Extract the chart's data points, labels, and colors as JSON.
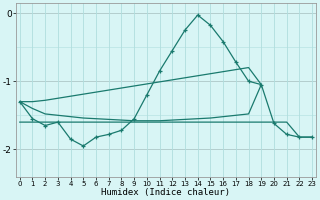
{
  "x": [
    0,
    1,
    2,
    3,
    4,
    5,
    6,
    7,
    8,
    9,
    10,
    11,
    12,
    13,
    14,
    15,
    16,
    17,
    18,
    19,
    20,
    21,
    22,
    23
  ],
  "line_main": [
    -1.3,
    -1.55,
    -1.65,
    -1.6,
    -1.85,
    -1.95,
    -1.82,
    -1.78,
    -1.72,
    -1.55,
    -1.2,
    -0.85,
    -0.55,
    -0.25,
    -0.03,
    -0.18,
    -0.42,
    -0.72,
    -1.0,
    -1.05,
    -1.62,
    -1.78,
    -1.82,
    -1.82
  ],
  "line_trend_upper": [
    -1.3,
    -1.3,
    -1.28,
    -1.25,
    -1.22,
    -1.19,
    -1.16,
    -1.13,
    -1.1,
    -1.07,
    -1.04,
    -1.01,
    -0.98,
    -0.95,
    -0.92,
    -0.89,
    -0.86,
    -0.83,
    -0.8,
    -1.05,
    null,
    null,
    null,
    null
  ],
  "line_trend_lower": [
    -1.3,
    -1.4,
    -1.48,
    -1.5,
    -1.52,
    -1.54,
    -1.55,
    -1.56,
    -1.57,
    -1.58,
    -1.58,
    -1.58,
    -1.57,
    -1.56,
    -1.55,
    -1.54,
    -1.52,
    -1.5,
    -1.48,
    -1.05,
    null,
    null,
    null,
    null
  ],
  "line_flat": [
    -1.6,
    -1.6,
    -1.6,
    -1.6,
    -1.6,
    -1.6,
    -1.6,
    -1.6,
    -1.6,
    -1.6,
    -1.6,
    -1.6,
    -1.6,
    -1.6,
    -1.6,
    -1.6,
    -1.6,
    -1.6,
    -1.6,
    -1.6,
    -1.6,
    -1.6,
    -1.82,
    -1.82
  ],
  "line_color": "#1a7a6e",
  "bg_color": "#d8f5f5",
  "grid_major_color": "#b0dede",
  "grid_minor_color": "#c8eeee",
  "xlabel": "Humidex (Indice chaleur)",
  "yticks": [
    0,
    -1,
    -2
  ],
  "xtick_labels": [
    "0",
    "1",
    "2",
    "3",
    "4",
    "5",
    "6",
    "7",
    "8",
    "9",
    "10",
    "11",
    "12",
    "13",
    "14",
    "15",
    "16",
    "17",
    "18",
    "19",
    "20",
    "21",
    "22",
    "23"
  ],
  "ylim": [
    -2.4,
    0.15
  ],
  "xlim": [
    -0.3,
    23.3
  ]
}
